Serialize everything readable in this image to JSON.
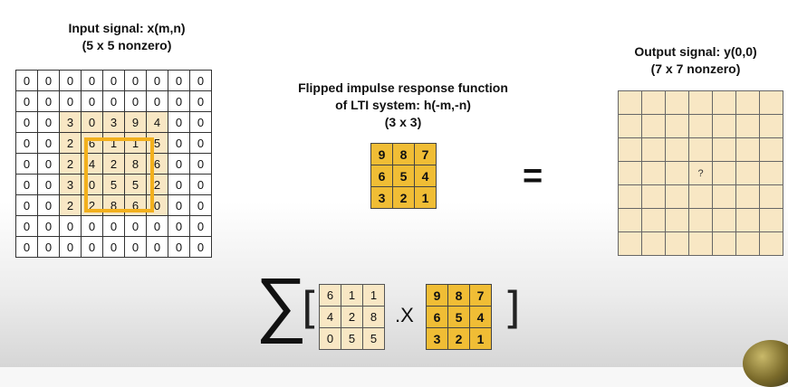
{
  "input_title": "Input signal: x(m,n)\n(5 x 5 nonzero)",
  "input_grid": [
    [
      "0",
      "0",
      "0",
      "0",
      "0",
      "0",
      "0",
      "0",
      "0"
    ],
    [
      "0",
      "0",
      "0",
      "0",
      "0",
      "0",
      "0",
      "0",
      "0"
    ],
    [
      "0",
      "0",
      "3",
      "0",
      "3",
      "9",
      "4",
      "0",
      "0"
    ],
    [
      "0",
      "0",
      "2",
      "6",
      "1",
      "1",
      "5",
      "0",
      "0"
    ],
    [
      "0",
      "0",
      "2",
      "4",
      "2",
      "8",
      "6",
      "0",
      "0"
    ],
    [
      "0",
      "0",
      "3",
      "0",
      "5",
      "5",
      "2",
      "0",
      "0"
    ],
    [
      "0",
      "0",
      "2",
      "2",
      "8",
      "6",
      "0",
      "0",
      "0"
    ],
    [
      "0",
      "0",
      "0",
      "0",
      "0",
      "0",
      "0",
      "0",
      "0"
    ],
    [
      "0",
      "0",
      "0",
      "0",
      "0",
      "0",
      "0",
      "0",
      "0"
    ]
  ],
  "kernel_title": "Flipped impulse response function\nof LTI system: h(-m,-n)\n(3 x 3)",
  "kernel_grid": [
    [
      "9",
      "8",
      "7"
    ],
    [
      "6",
      "5",
      "4"
    ],
    [
      "3",
      "2",
      "1"
    ]
  ],
  "equals": "=",
  "output_title": "Output signal: y(0,0)\n(7 x 7 nonzero)",
  "output_unknown": "?",
  "sum_symbol": "∑",
  "left_bracket": "[",
  "right_bracket": "]",
  "times": ".X",
  "patch_grid": [
    [
      "6",
      "1",
      "1"
    ],
    [
      "4",
      "2",
      "8"
    ],
    [
      "0",
      "5",
      "5"
    ]
  ],
  "colors": {
    "kernel": "#f0bd35",
    "highlight": "#f8e7c4",
    "frame": "#f2b01d"
  }
}
